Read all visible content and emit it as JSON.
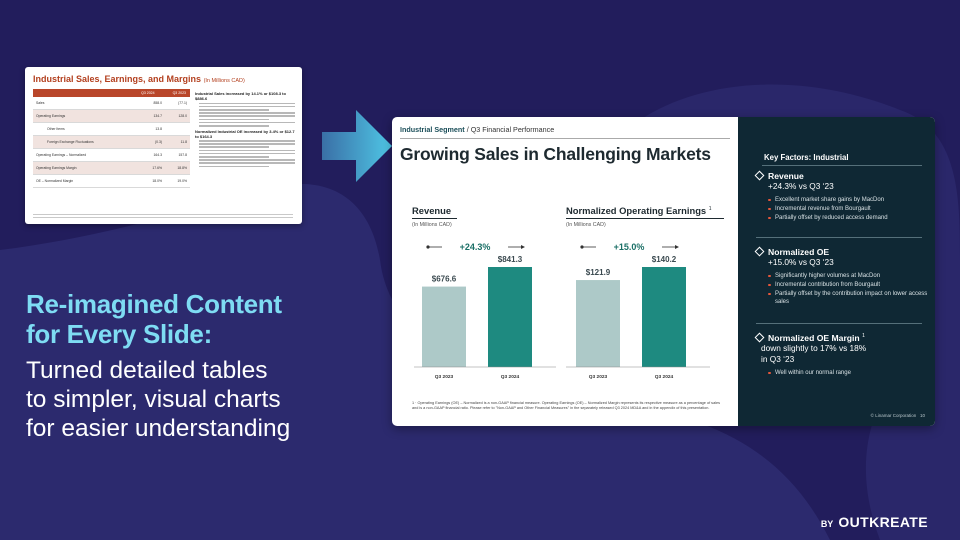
{
  "colors": {
    "background": "#221d5c",
    "accent_cyan": "#7edcf3",
    "bar_prior": "#adc9c8",
    "bar_current": "#1e8a80",
    "panel_dark": "#0f2834",
    "bullet_orange": "#e5573b"
  },
  "thumbnail": {
    "title": "Industrial Sales, Earnings, and Margins",
    "title_unit": "(In Millions CAD)",
    "col_headers": [
      "Q3 2024",
      "Q3 2023"
    ],
    "rows": [
      {
        "label": "Sales",
        "v1": "858.0",
        "v2": "(77.1)",
        "indent": false
      },
      {
        "label": "Operating Earnings",
        "v1": "134.7",
        "v2": "128.0",
        "indent": false
      },
      {
        "label": "Other Items",
        "v1": "13.8",
        "v2": "",
        "indent": true
      },
      {
        "label": "Foreign Exchange Fluctuations",
        "v1": "(0.3)",
        "v2": "11.8",
        "indent": true
      },
      {
        "label": "Operating Earnings – Normalized",
        "v1": "164.3",
        "v2": "157.8",
        "indent": false
      },
      {
        "label": "Operating Earnings Margin",
        "v1": "17.6%",
        "v2": "18.8%",
        "indent": false
      },
      {
        "label": "OE – Normalized Margin",
        "v1": "18.0%",
        "v2": "19.0%",
        "indent": false
      }
    ],
    "notes": [
      {
        "heading": "Industrial Sales increased by 14.1% or $108.3 to $886.6"
      },
      {
        "heading": "Normalized Industrial OE increased by 3.4% or $12.7 to $164.3"
      }
    ]
  },
  "slide": {
    "breadcrumb_strong": "Industrial Segment",
    "breadcrumb_rest": " / Q3 Financial Performance",
    "title": "Growing Sales in Challenging Markets",
    "footnote": "1 · Operating Earnings (OE) – Normalized is a non-GAAP financial measure. Operating Earnings (OE) – Normalized Margin represents its respective measure as a percentage of sales and is a non-GAAP financial ratio. Please refer to \"Non-GAAP and Other Financial Measures\" in the separately released Q3 2024 MD&A and in the appendix of this presentation.",
    "copyright": "© Linamar Corporation",
    "page_number": "10",
    "key_factors_title": "Key Factors: Industrial",
    "factors": [
      {
        "heading": "Revenue",
        "heading_sup": "",
        "summary": "+24.3% vs Q3 ‘23",
        "bullets": [
          "Excellent market share gains by MacDon",
          "Incremental revenue from Bourgault",
          "Partially offset by reduced access demand"
        ]
      },
      {
        "heading": "Normalized OE",
        "heading_sup": "",
        "summary": "+15.0% vs Q3 ‘23",
        "bullets": [
          "Significantly higher volumes at MacDon",
          "Incremental contribution from Bourgault",
          "Partially offset by the contribution impact on lower access sales"
        ]
      },
      {
        "heading": "Normalized OE Margin",
        "heading_sup": "1",
        "summary": "down slightly to 17% vs 18% in Q3 ‘23",
        "bullets": [
          "Well within our normal range"
        ]
      }
    ]
  },
  "chart_data": [
    {
      "type": "bar",
      "title": "Revenue",
      "unit": "(In Millions CAD)",
      "categories": [
        "Q3 2023",
        "Q3 2024"
      ],
      "values": [
        676.6,
        841.3
      ],
      "value_labels": [
        "$676.6",
        "$841.3"
      ],
      "change_label": "+24.3%",
      "ylim": [
        0,
        900
      ]
    },
    {
      "type": "bar",
      "title": "Normalized Operating Earnings",
      "title_sup": "1",
      "unit": "(In Millions CAD)",
      "categories": [
        "Q3 2023",
        "Q3 2024"
      ],
      "values": [
        121.9,
        140.2
      ],
      "value_labels": [
        "$121.9",
        "$140.2"
      ],
      "change_label": "+15.0%",
      "ylim": [
        0,
        150
      ]
    }
  ],
  "marketing": {
    "headline_line1": "Re-imagined Content",
    "headline_line2": "for Every Slide:",
    "subhead_line1": "Turned detailed tables",
    "subhead_line2": "to simpler, visual charts",
    "subhead_line3": "for easier understanding",
    "brand_by": "BY",
    "brand_name": "OUTKREATE"
  }
}
